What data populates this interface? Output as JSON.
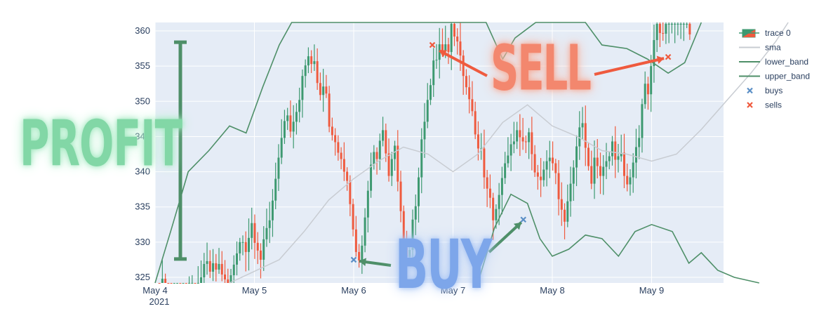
{
  "chart_data": {
    "type": "candlestick",
    "title": "",
    "xlabel": "",
    "ylabel": "",
    "x_ticks": [
      "May 4",
      "May 5",
      "May 6",
      "May 7",
      "May 8",
      "May 9"
    ],
    "x_tick_year": "2021",
    "y_ticks": [
      325,
      330,
      335,
      340,
      345,
      350,
      355,
      360
    ],
    "ylim": [
      324.2,
      361.2
    ],
    "xlim": [
      "May 4 00:00",
      "May 10 16:00"
    ],
    "grid": true,
    "legend_position": "top-right",
    "legend": [
      {
        "name": "trace 0",
        "kind": "candlestick"
      },
      {
        "name": "sma",
        "kind": "line"
      },
      {
        "name": "lower_band",
        "kind": "line"
      },
      {
        "name": "upper_band",
        "kind": "line"
      },
      {
        "name": "buys",
        "kind": "marker"
      },
      {
        "name": "sells",
        "kind": "marker"
      }
    ],
    "colors": {
      "increasing": "#3d9970",
      "decreasing": "#ef5a3e",
      "sma": "#c8ccd2",
      "band": "#4e8f68",
      "buys": "#5b8fc6",
      "sells": "#ef5a3e",
      "plot_bg": "#e5ecf6"
    },
    "candles_close": [
      322.5,
      324.8,
      322.1,
      320.4,
      318.6,
      319.9,
      321.5,
      319.8,
      321.1,
      320.6,
      322.4,
      322.9,
      322.6,
      323.8,
      325.0,
      326.9,
      327.3,
      325.8,
      327.0,
      326.1,
      326.9,
      325.4,
      324.7,
      323.6,
      325.3,
      326.8,
      328.4,
      330.0,
      330.0,
      328.6,
      330.6,
      332.7,
      329.9,
      328.8,
      327.5,
      330.4,
      332.0,
      333.1,
      335.9,
      339.0,
      342.0,
      344.8,
      347.2,
      348.0,
      345.7,
      347.1,
      348.5,
      350.2,
      353.6,
      355.1,
      356.4,
      355.3,
      355.7,
      352.6,
      350.9,
      352.1,
      351.1,
      346.4,
      345.2,
      344.2,
      342.7,
      341.8,
      340.0,
      338.7,
      335.4,
      331.8,
      328.6,
      327.4,
      329.5,
      333.5,
      337.3,
      341.0,
      342.8,
      341.8,
      344.4,
      345.9,
      342.6,
      339.4,
      341.8,
      343.7,
      338.6,
      334.4,
      330.4,
      327.9,
      328.9,
      333.2,
      335.1,
      339.2,
      344.6,
      347.1,
      350.2,
      352.3,
      355.8,
      355.9,
      358.1,
      357.1,
      358.1,
      357.0,
      361.0,
      359.2,
      358.5,
      356.5,
      353.6,
      352.0,
      350.3,
      348.6,
      345.3,
      343.3,
      343.3,
      339.2,
      337.6,
      336.3,
      333.1,
      334.7,
      336.7,
      339.1,
      341.2,
      342.3,
      343.9,
      344.3,
      345.9,
      344.9,
      344.3,
      344.2,
      345.6,
      342.5,
      339.9,
      339.3,
      338.8,
      340.3,
      341.5,
      342.0,
      341.2,
      339.8,
      336.1,
      334.6,
      332.9,
      335.8,
      338.3,
      340.6,
      343.6,
      346.3,
      346.9,
      343.4,
      340.8,
      338.3,
      342.0,
      340.8,
      339.4,
      340.7,
      341.5,
      342.2,
      344.3,
      341.7,
      342.2,
      342.7,
      339.4,
      338.2,
      339.2,
      341.3,
      343.5,
      344.8,
      349.6,
      352.5,
      351.0,
      355.0,
      358.7,
      361.0,
      359.7,
      359.6,
      361.0,
      361.0,
      361.0,
      361.0,
      361.0,
      361.0,
      361.0,
      361.0,
      359.5
    ],
    "sma": [
      {
        "x": "May 4 18:00",
        "y": 324.2
      },
      {
        "x": "May 5 06:00",
        "y": 327.5
      },
      {
        "x": "May 5 12:00",
        "y": 331.5
      },
      {
        "x": "May 5 18:00",
        "y": 336.0
      },
      {
        "x": "May 6 00:00",
        "y": 339.0
      },
      {
        "x": "May 6 06:00",
        "y": 341.5
      },
      {
        "x": "May 6 12:00",
        "y": 343.5
      },
      {
        "x": "May 6 18:00",
        "y": 342.5
      },
      {
        "x": "May 7 00:00",
        "y": 340.0
      },
      {
        "x": "May 7 06:00",
        "y": 342.5
      },
      {
        "x": "May 7 12:00",
        "y": 347.0
      },
      {
        "x": "May 7 18:00",
        "y": 349.5
      },
      {
        "x": "May 8 00:00",
        "y": 346.5
      },
      {
        "x": "May 8 06:00",
        "y": 345.0
      },
      {
        "x": "May 8 12:00",
        "y": 343.0
      },
      {
        "x": "May 8 18:00",
        "y": 342.5
      },
      {
        "x": "May 9 00:00",
        "y": 341.5
      },
      {
        "x": "May 9 06:00",
        "y": 342.5
      },
      {
        "x": "May 9 12:00",
        "y": 346.0
      },
      {
        "x": "May 9 18:00",
        "y": 350.0
      },
      {
        "x": "May 10 00:00",
        "y": 354.0
      },
      {
        "x": "May 10 06:00",
        "y": 358.5
      },
      {
        "x": "May 10 09:00",
        "y": 361.2
      }
    ],
    "upper_band": [
      {
        "x": "May 4 00:00",
        "y": 320.0
      },
      {
        "x": "May 4 04:00",
        "y": 332.0
      },
      {
        "x": "May 4 08:00",
        "y": 340.0
      },
      {
        "x": "May 4 13:00",
        "y": 343.0
      },
      {
        "x": "May 4 18:00",
        "y": 346.5
      },
      {
        "x": "May 4 22:00",
        "y": 345.5
      },
      {
        "x": "May 5 02:00",
        "y": 352.0
      },
      {
        "x": "May 5 06:00",
        "y": 358.0
      },
      {
        "x": "May 5 09:00",
        "y": 361.2
      },
      {
        "x": "May 7 08:00",
        "y": 361.2
      },
      {
        "x": "May 7 12:00",
        "y": 356.0
      },
      {
        "x": "May 7 15:00",
        "y": 359.0
      },
      {
        "x": "May 7 20:00",
        "y": 361.2
      },
      {
        "x": "May 8 08:00",
        "y": 361.2
      },
      {
        "x": "May 8 12:00",
        "y": 358.0
      },
      {
        "x": "May 8 18:00",
        "y": 357.5
      },
      {
        "x": "May 8 23:00",
        "y": 356.0
      },
      {
        "x": "May 9 04:00",
        "y": 354.0
      },
      {
        "x": "May 9 08:00",
        "y": 355.5
      },
      {
        "x": "May 9 12:00",
        "y": 361.2
      }
    ],
    "lower_band": [
      {
        "x": "May 7 06:00",
        "y": 324.2
      },
      {
        "x": "May 7 10:00",
        "y": 332.0
      },
      {
        "x": "May 7 14:00",
        "y": 336.8
      },
      {
        "x": "May 7 18:00",
        "y": 335.5
      },
      {
        "x": "May 7 21:00",
        "y": 330.5
      },
      {
        "x": "May 8 00:00",
        "y": 328.0
      },
      {
        "x": "May 8 04:00",
        "y": 329.0
      },
      {
        "x": "May 8 08:00",
        "y": 331.0
      },
      {
        "x": "May 8 12:00",
        "y": 330.5
      },
      {
        "x": "May 8 16:00",
        "y": 328.0
      },
      {
        "x": "May 8 20:00",
        "y": 331.5
      },
      {
        "x": "May 9 00:00",
        "y": 332.5
      },
      {
        "x": "May 9 05:00",
        "y": 331.5
      },
      {
        "x": "May 9 09:00",
        "y": 327.0
      },
      {
        "x": "May 9 12:00",
        "y": 328.5
      },
      {
        "x": "May 9 16:00",
        "y": 326.0
      },
      {
        "x": "May 9 20:00",
        "y": 325.0
      },
      {
        "x": "May 10 02:00",
        "y": 324.2
      }
    ],
    "buys": [
      {
        "x": "May 6 00:00",
        "y": 327.5
      },
      {
        "x": "May 7 17:00",
        "y": 333.2
      }
    ],
    "sells": [
      {
        "x": "May 6 19:00",
        "y": 358.0
      },
      {
        "x": "May 9 04:00",
        "y": 356.3
      }
    ],
    "annotations": [
      {
        "text": "PROFIT",
        "color": "#82d7a6"
      },
      {
        "text": "SELL",
        "color": "#f3876e"
      },
      {
        "text": "BUY",
        "color": "#7da6ea"
      }
    ],
    "profit_range": [
      327.6,
      358.4
    ]
  }
}
